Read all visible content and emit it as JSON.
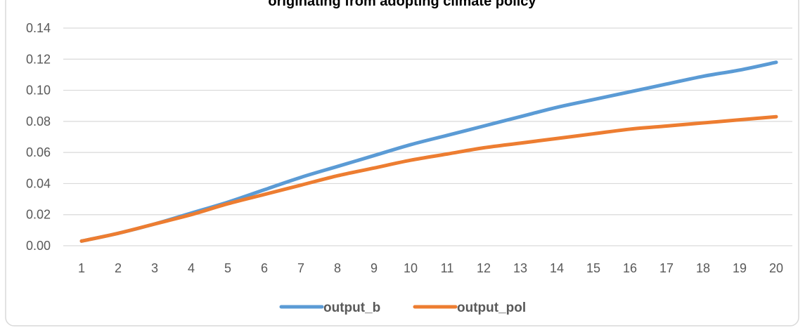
{
  "chart_data": {
    "type": "line",
    "title": "originating from adopting climate policy",
    "xlabel": "",
    "ylabel": "",
    "x": [
      1,
      2,
      3,
      4,
      5,
      6,
      7,
      8,
      9,
      10,
      11,
      12,
      13,
      14,
      15,
      16,
      17,
      18,
      19,
      20
    ],
    "x_tick_labels": [
      "1",
      "2",
      "3",
      "4",
      "5",
      "6",
      "7",
      "8",
      "9",
      "10",
      "11",
      "12",
      "13",
      "14",
      "15",
      "16",
      "17",
      "18",
      "19",
      "20"
    ],
    "y_tick_labels": [
      "0.00",
      "0.02",
      "0.04",
      "0.06",
      "0.08",
      "0.10",
      "0.12",
      "0.14"
    ],
    "ylim": [
      0,
      0.14
    ],
    "grid": true,
    "legend_position": "bottom",
    "series": [
      {
        "name": "output_b",
        "color": "#5B9BD5",
        "values": [
          0.003,
          0.008,
          0.014,
          0.021,
          0.028,
          0.036,
          0.044,
          0.051,
          0.058,
          0.065,
          0.071,
          0.077,
          0.083,
          0.089,
          0.094,
          0.099,
          0.104,
          0.109,
          0.113,
          0.118
        ]
      },
      {
        "name": "output_pol",
        "color": "#ED7D31",
        "values": [
          0.003,
          0.008,
          0.014,
          0.02,
          0.027,
          0.033,
          0.039,
          0.045,
          0.05,
          0.055,
          0.059,
          0.063,
          0.066,
          0.069,
          0.072,
          0.075,
          0.077,
          0.079,
          0.081,
          0.083
        ]
      }
    ]
  }
}
